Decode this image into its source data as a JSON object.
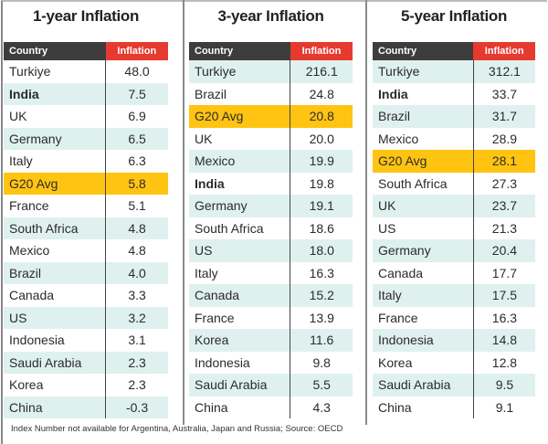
{
  "chart_data": [
    {
      "type": "table",
      "title": "1-year Inflation",
      "columns": [
        "Country",
        "Inflation"
      ],
      "rows": [
        [
          "Turkiye",
          "48.0"
        ],
        [
          "India",
          "7.5"
        ],
        [
          "UK",
          "6.9"
        ],
        [
          "Germany",
          "6.5"
        ],
        [
          "Italy",
          "6.3"
        ],
        [
          "G20 Avg",
          "5.8"
        ],
        [
          "France",
          "5.1"
        ],
        [
          "South Africa",
          "4.8"
        ],
        [
          "Mexico",
          "4.8"
        ],
        [
          "Brazil",
          "4.0"
        ],
        [
          "Canada",
          "3.3"
        ],
        [
          "US",
          "3.2"
        ],
        [
          "Indonesia",
          "3.1"
        ],
        [
          "Saudi Arabia",
          "2.3"
        ],
        [
          "Korea",
          "2.3"
        ],
        [
          "China",
          "-0.3"
        ]
      ]
    },
    {
      "type": "table",
      "title": "3-year Inflation",
      "columns": [
        "Country",
        "Inflation"
      ],
      "rows": [
        [
          "Turkiye",
          "216.1"
        ],
        [
          "Brazil",
          "24.8"
        ],
        [
          "G20 Avg",
          "20.8"
        ],
        [
          "UK",
          "20.0"
        ],
        [
          "Mexico",
          "19.9"
        ],
        [
          "India",
          "19.8"
        ],
        [
          "Germany",
          "19.1"
        ],
        [
          "South Africa",
          "18.6"
        ],
        [
          "US",
          "18.0"
        ],
        [
          "Italy",
          "16.3"
        ],
        [
          "Canada",
          "15.2"
        ],
        [
          "France",
          "13.9"
        ],
        [
          "Korea",
          "11.6"
        ],
        [
          "Indonesia",
          "9.8"
        ],
        [
          "Saudi Arabia",
          "5.5"
        ],
        [
          "China",
          "4.3"
        ]
      ]
    },
    {
      "type": "table",
      "title": "5-year Inflation",
      "columns": [
        "Country",
        "Inflation"
      ],
      "rows": [
        [
          "Turkiye",
          "312.1"
        ],
        [
          "India",
          "33.7"
        ],
        [
          "Brazil",
          "31.7"
        ],
        [
          "Mexico",
          "28.9"
        ],
        [
          "G20 Avg",
          "28.1"
        ],
        [
          "South Africa",
          "27.3"
        ],
        [
          "UK",
          "23.7"
        ],
        [
          "US",
          "21.3"
        ],
        [
          "Germany",
          "20.4"
        ],
        [
          "Canada",
          "17.7"
        ],
        [
          "Italy",
          "17.5"
        ],
        [
          "France",
          "16.3"
        ],
        [
          "Indonesia",
          "14.8"
        ],
        [
          "Korea",
          "12.8"
        ],
        [
          "Saudi Arabia",
          "9.5"
        ],
        [
          "China",
          "9.1"
        ]
      ]
    }
  ],
  "highlight": {
    "G20 Avg": "#ffc411",
    "India": "bold"
  },
  "colors": {
    "header": "#3d3d3d",
    "inflation_header": "#e63a2e",
    "stripe": "#dff1ef"
  },
  "footnote": "Index Number not available for Argentina, Australia, Japan and Russia; Source: OECD"
}
